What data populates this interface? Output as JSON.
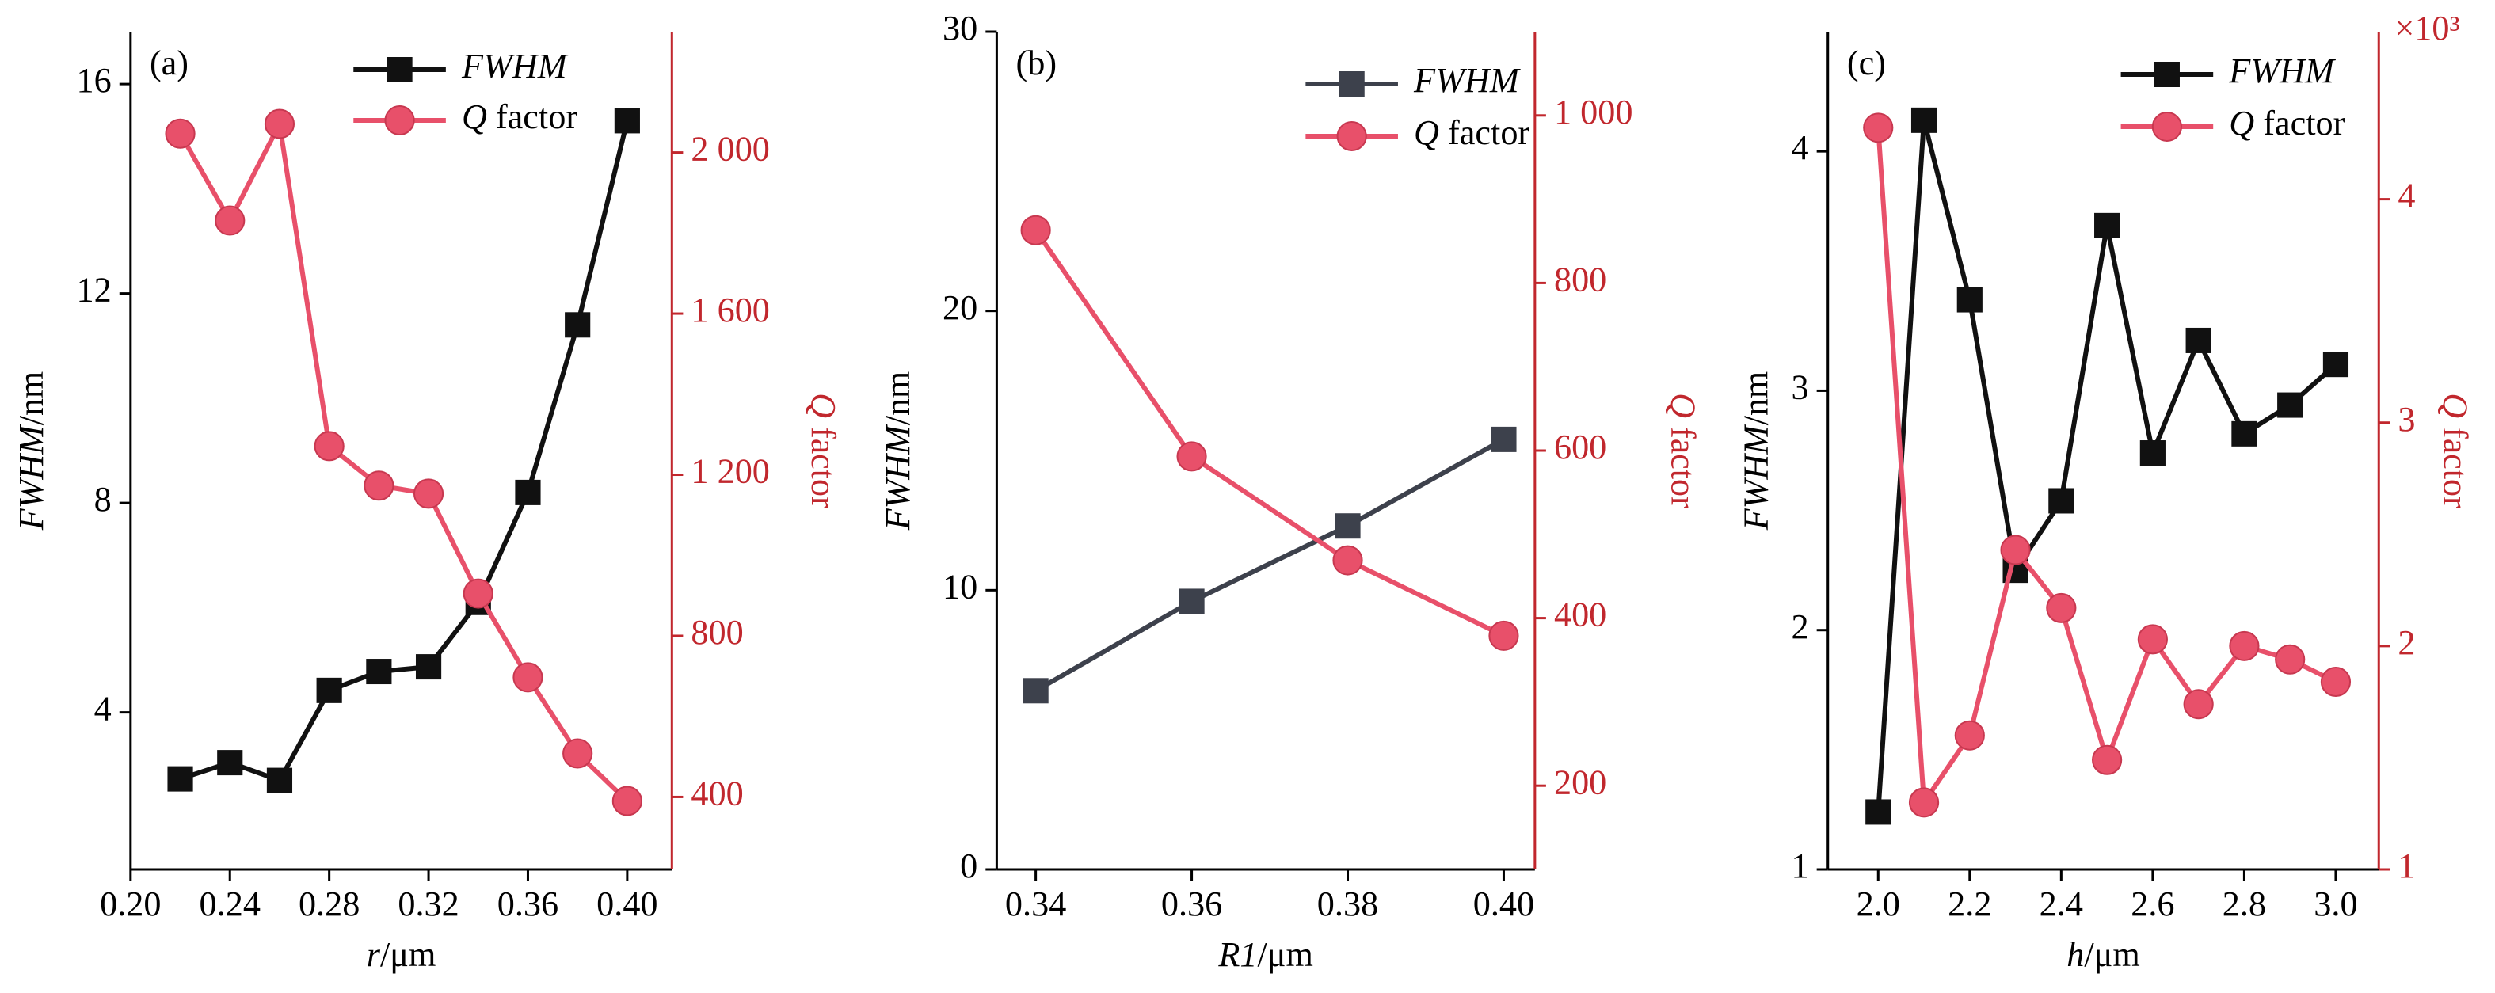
{
  "chart_data": [
    {
      "type": "line",
      "label": "(a)",
      "xlabel": "r/μm",
      "ylabel": "FWHM/nm",
      "y2label": "Q factor",
      "legend": "upper right",
      "y2color": "#c1272d",
      "xlim": [
        0.2,
        0.418
      ],
      "xticks": [
        {
          "value": 0.2,
          "label": "0.20"
        },
        0.24,
        0.28,
        0.32,
        0.36,
        {
          "value": 0.4,
          "label": "0.40"
        }
      ],
      "ylim": [
        1,
        17
      ],
      "yticks": [
        4,
        8,
        12,
        16
      ],
      "y2lim": [
        220,
        2300
      ],
      "y2ticks": [
        400,
        800,
        {
          "value": 1200,
          "label": "1 200"
        },
        {
          "value": 1600,
          "label": "1 600"
        },
        {
          "value": 2000,
          "label": "2 000"
        }
      ],
      "x": [
        0.22,
        0.24,
        0.26,
        0.28,
        0.3,
        0.32,
        0.34,
        0.36,
        0.38,
        0.4
      ],
      "series": [
        {
          "name": "FWHM",
          "color": "#111111",
          "values": [
            2.73,
            3.04,
            2.7,
            4.42,
            4.78,
            4.87,
            6.1,
            8.2,
            11.4,
            15.3
          ]
        },
        {
          "name": "Q factor",
          "color": "#e8506a",
          "axis": "y2",
          "values": [
            2047,
            1831,
            2071,
            1271,
            1173,
            1153,
            905,
            697,
            508,
            390
          ]
        }
      ]
    },
    {
      "type": "line",
      "label": "(b)",
      "xlabel": "R1/μm",
      "ylabel": "FWHM/nm",
      "y2label": "Q factor",
      "legend": "upper right",
      "y2color": "#c1272d",
      "xlim": [
        0.335,
        0.404
      ],
      "xticks": [
        0.34,
        0.36,
        0.38,
        {
          "value": 0.4,
          "label": "0.40"
        }
      ],
      "ylim": [
        0,
        30
      ],
      "yticks": [
        0,
        10,
        20,
        30
      ],
      "y2lim": [
        100,
        1100
      ],
      "y2ticks": [
        200,
        400,
        600,
        800,
        {
          "value": 1000,
          "label": "1 000"
        }
      ],
      "x": [
        0.34,
        0.36,
        0.38,
        0.4
      ],
      "series": [
        {
          "name": "FWHM",
          "color": "#3d414c",
          "values": [
            6.4,
            9.6,
            12.3,
            15.4
          ]
        },
        {
          "name": "Q factor",
          "color": "#e8506a",
          "axis": "y2",
          "values": [
            863,
            593,
            469,
            379
          ]
        }
      ]
    },
    {
      "type": "line",
      "label": "(c)",
      "xlabel": "h/μm",
      "ylabel": "FWHM/nm",
      "y2label": "Q factor",
      "y2_scale_label": "×10³",
      "legend": "upper right",
      "y2color": "#c1272d",
      "xlim": [
        1.89,
        3.094
      ],
      "xticks": [
        {
          "value": 2,
          "label": "2.0"
        },
        2.2,
        2.4,
        2.6,
        2.8,
        {
          "value": 3,
          "label": "3.0"
        }
      ],
      "ylim": [
        1,
        4.5
      ],
      "yticks": [
        1,
        2,
        3,
        4
      ],
      "y2lim": [
        1,
        4.75
      ],
      "y2ticks": [
        1,
        2,
        3,
        4
      ],
      "x": [
        2.0,
        2.1,
        2.2,
        2.3,
        2.4,
        2.5,
        2.6,
        2.7,
        2.8,
        2.9,
        3.0
      ],
      "series": [
        {
          "name": "FWHM",
          "color": "#111111",
          "values": [
            1.24,
            4.13,
            3.38,
            2.25,
            2.54,
            3.69,
            2.74,
            3.21,
            2.82,
            2.94,
            3.11
          ]
        },
        {
          "name": "Q factor",
          "color": "#e8506a",
          "axis": "y2",
          "values": [
            4.32,
            1.3,
            1.6,
            2.43,
            2.17,
            1.49,
            2.03,
            1.74,
            2.0,
            1.94,
            1.84
          ]
        }
      ]
    }
  ]
}
